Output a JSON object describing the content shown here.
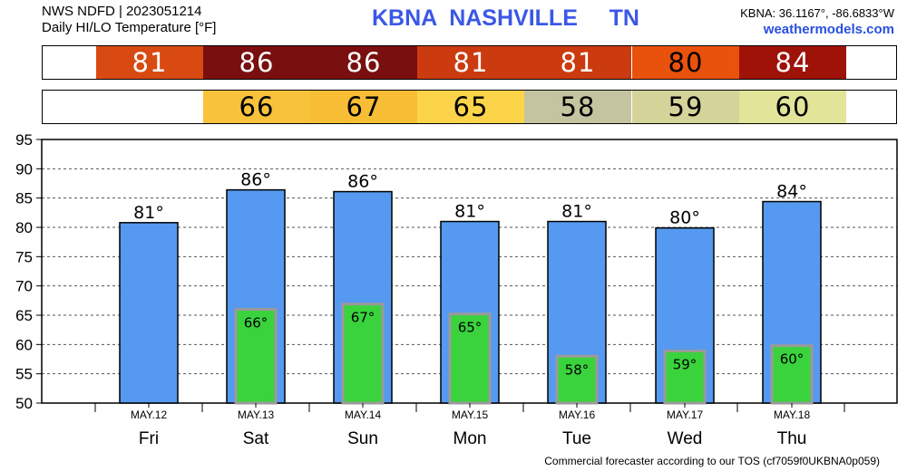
{
  "header": {
    "line1": "NWS NDFD | 2023051214",
    "line2": "Daily HI/LO Temperature [°F]",
    "station": "KBNA",
    "city": "NASHVILLE",
    "state": "TN",
    "coords": "KBNA: 36.1167°, -86.6833°W",
    "site": "weathermodels.com"
  },
  "hi_strip": [
    {
      "value": "81",
      "bg": "#d94a12",
      "fg": "#ffffff"
    },
    {
      "value": "86",
      "bg": "#7a0f0f",
      "fg": "#ffffff"
    },
    {
      "value": "86",
      "bg": "#7a0f0f",
      "fg": "#ffffff"
    },
    {
      "value": "81",
      "bg": "#cc3a10",
      "fg": "#ffffff"
    },
    {
      "value": "81",
      "bg": "#cc3a10",
      "fg": "#ffffff"
    },
    {
      "value": "80",
      "bg": "#e8520c",
      "fg": "#000000"
    },
    {
      "value": "84",
      "bg": "#9e1208",
      "fg": "#ffffff"
    }
  ],
  "lo_strip": [
    {
      "value": "",
      "bg": "#ffffff",
      "fg": "#000000"
    },
    {
      "value": "66",
      "bg": "#f8c23a",
      "fg": "#000000"
    },
    {
      "value": "67",
      "bg": "#f7bd35",
      "fg": "#000000"
    },
    {
      "value": "65",
      "bg": "#fbd44a",
      "fg": "#000000"
    },
    {
      "value": "58",
      "bg": "#c4c4a0",
      "fg": "#000000"
    },
    {
      "value": "59",
      "bg": "#d4d49a",
      "fg": "#000000"
    },
    {
      "value": "60",
      "bg": "#e2e49a",
      "fg": "#000000"
    }
  ],
  "chart_data": {
    "type": "bar",
    "categories": [
      "Fri",
      "Sat",
      "Sun",
      "Mon",
      "Tue",
      "Wed",
      "Thu"
    ],
    "dates": [
      "MAY.12",
      "MAY.13",
      "MAY.14",
      "MAY.15",
      "MAY.16",
      "MAY.17",
      "MAY.18"
    ],
    "series": [
      {
        "values": [
          80.8,
          86.4,
          86.1,
          81.0,
          81.0,
          79.9,
          84.4
        ],
        "labels": [
          "81°",
          "86°",
          "86°",
          "81°",
          "81°",
          "80°",
          "84°"
        ],
        "color": "#5599f0"
      },
      {
        "values": [
          null,
          66.0,
          66.9,
          65.2,
          58.0,
          58.9,
          59.8
        ],
        "labels": [
          "",
          "66°",
          "67°",
          "65°",
          "58°",
          "59°",
          "60°"
        ],
        "color": "#3ad23d"
      }
    ],
    "ylim": [
      50,
      95
    ],
    "yticks": [
      50,
      55,
      60,
      65,
      70,
      75,
      80,
      85,
      90,
      95
    ],
    "grid": true
  },
  "footer": "Commercial forecaster according to our TOS (cf7059f0UKBNA0p059)"
}
